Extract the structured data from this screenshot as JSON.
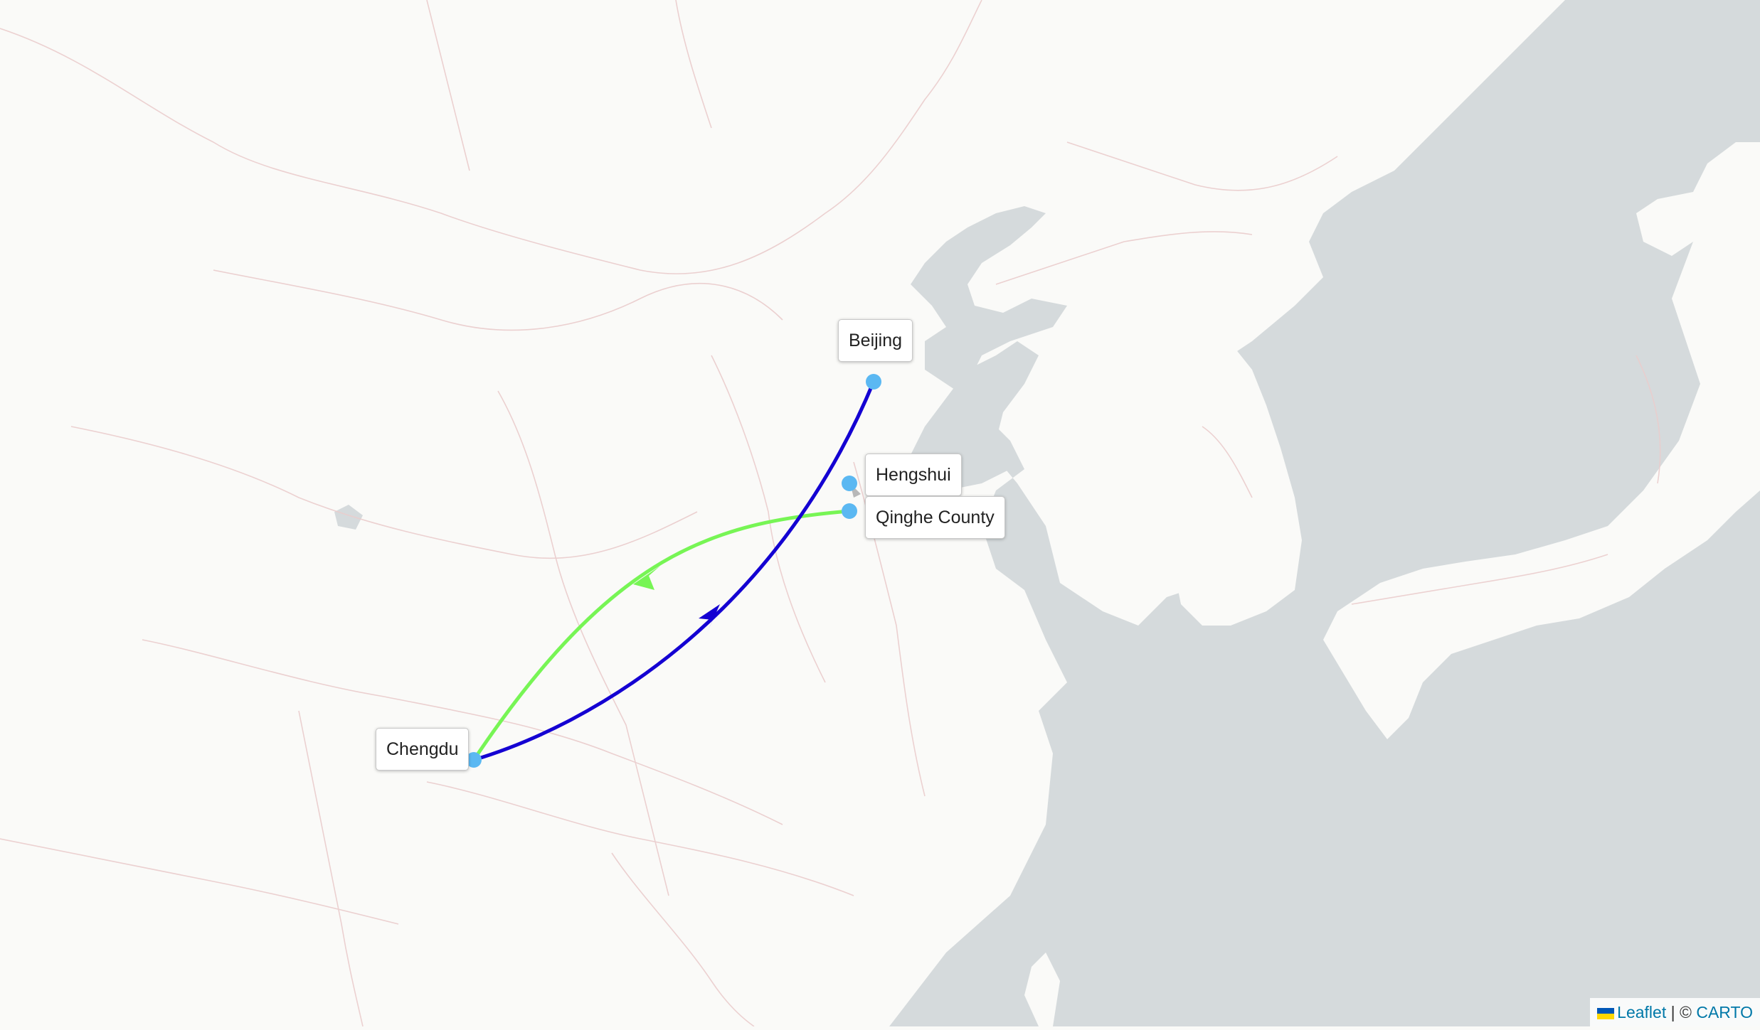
{
  "map": {
    "colors": {
      "land": "#fafaf8",
      "sea": "#d5dadc",
      "borders": "#e6cfcf",
      "marker": "#5bb8f2",
      "route_green": "#77f555",
      "route_blue": "#1400d2"
    },
    "cities": [
      {
        "id": "beijing",
        "label": "Beijing"
      },
      {
        "id": "hengshui",
        "label": "Hengshui"
      },
      {
        "id": "qinghe",
        "label": "Qinghe County"
      },
      {
        "id": "chengdu",
        "label": "Chengdu"
      }
    ],
    "routes": [
      {
        "from": "Qinghe County",
        "to": "Chengdu",
        "color": "#77f555"
      },
      {
        "from": "Chengdu",
        "to": "Beijing",
        "color": "#1400d2"
      }
    ]
  },
  "attribution": {
    "leaflet": "Leaflet",
    "separator": " | © ",
    "carto": "CARTO"
  }
}
